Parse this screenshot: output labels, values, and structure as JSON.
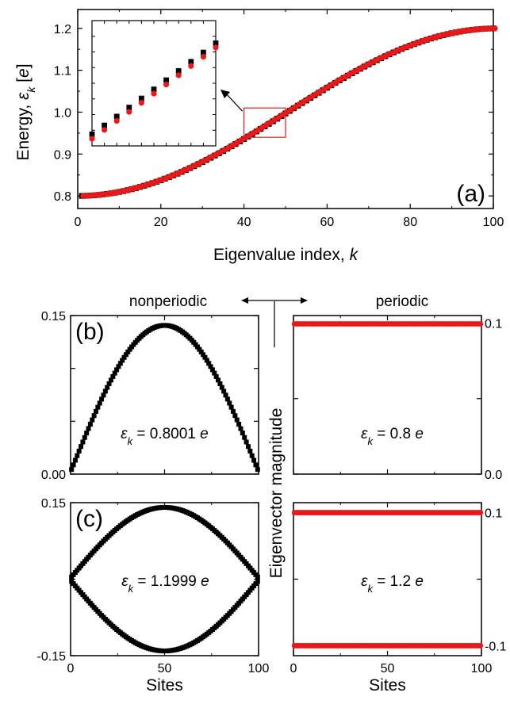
{
  "chart_data": [
    {
      "id": "a",
      "type": "scatter",
      "panel_label": "(a)",
      "xlabel": "Eigenvalue index, k",
      "ylabel": "Energy, ε_k [e]",
      "xlim": [
        0,
        100
      ],
      "ylim": [
        0.77,
        1.245
      ],
      "xticks": [
        "0",
        "20",
        "40",
        "60",
        "80",
        "100"
      ],
      "yticks": [
        "0.8",
        "0.9",
        "1.0",
        "1.1",
        "1.2"
      ],
      "series": [
        {
          "marker": "square",
          "color": "#000000",
          "model": "nonperiodic",
          "energy_min": 0.8,
          "energy_max": 1.2,
          "n": 100
        },
        {
          "marker": "circle",
          "color": "#e8191a",
          "model": "periodic",
          "energy_min": 0.8,
          "energy_max": 1.2,
          "n": 100
        }
      ],
      "zoom_box": {
        "xlim": [
          40,
          50
        ],
        "ylim": [
          0.94,
          1.01
        ],
        "color": "#e8191a"
      },
      "inset": {
        "xlim": [
          40,
          50
        ],
        "ylim": [
          0.928,
          1.012
        ]
      }
    },
    {
      "id": "b",
      "type": "scatter",
      "panel_label": "(b)",
      "annotation": "ε_k = 0.8001 e",
      "xlim": [
        0,
        100
      ],
      "ylim": [
        0,
        0.15
      ],
      "yticks": [
        "0.15",
        "0.00"
      ],
      "shape": "single-arch",
      "amplitude": 0.1407,
      "color": "#000000",
      "marker": "square"
    },
    {
      "id": "b-periodic",
      "type": "scatter",
      "annotation": "ε_k = 0.8 e",
      "xlim": [
        0,
        100
      ],
      "ylim": [
        0,
        0.105
      ],
      "yticks": [
        "0.1",
        "0.0"
      ],
      "shape": "flat",
      "value": 0.0995,
      "color": "#e8191a",
      "marker": "circle"
    },
    {
      "id": "c",
      "type": "scatter",
      "panel_label": "(c)",
      "annotation": "ε_k = 1.1999 e",
      "xlabel": "Sites",
      "xlim": [
        0,
        100
      ],
      "ylim": [
        -0.15,
        0.15
      ],
      "xticks": [
        "0",
        "50",
        "100"
      ],
      "yticks": [
        "0.15",
        "-0.15"
      ],
      "shape": "alternating-arch",
      "amplitude": 0.1407,
      "color": "#000000",
      "marker": "square"
    },
    {
      "id": "c-periodic",
      "type": "scatter",
      "annotation": "ε_k = 1.2 e",
      "xlabel": "Sites",
      "xlim": [
        0,
        100
      ],
      "ylim": [
        -0.115,
        0.115
      ],
      "xticks": [
        "0",
        "50",
        "100"
      ],
      "yticks": [
        "0.1",
        "-0.1"
      ],
      "shape": "alternating-flat",
      "value": 0.1,
      "color": "#e8191a",
      "marker": "circle"
    }
  ],
  "labels": {
    "nonperiodic": "nonperiodic",
    "periodic": "periodic",
    "eigvec": "Eigenvector magnitude"
  }
}
